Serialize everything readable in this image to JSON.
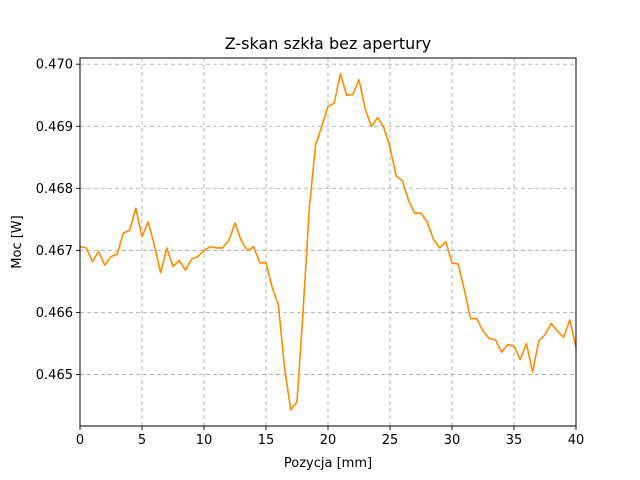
{
  "chart_data": {
    "type": "line",
    "title": "Z-skan szkła bez apertury",
    "xlabel": "Pozycja [mm]",
    "ylabel": "Moc [W]",
    "xlim": [
      0,
      40
    ],
    "ylim": [
      0.46417,
      0.4701
    ],
    "xticks": [
      0,
      5,
      10,
      15,
      20,
      25,
      30,
      35,
      40
    ],
    "xtick_labels": [
      "0",
      "5",
      "10",
      "15",
      "20",
      "25",
      "30",
      "35",
      "40"
    ],
    "yticks": [
      0.465,
      0.466,
      0.467,
      0.468,
      0.469,
      0.47
    ],
    "ytick_labels": [
      "0.465",
      "0.466",
      "0.467",
      "0.468",
      "0.469",
      "0.470"
    ],
    "grid": true,
    "line_color": "#ff8c00",
    "series": [
      {
        "x": [
          0,
          0.5,
          1,
          1.5,
          2,
          2.5,
          3,
          3.5,
          4,
          4.5,
          5,
          5.5,
          6,
          6.5,
          7,
          7.5,
          8,
          8.5,
          9,
          9.5,
          10,
          10.5,
          11,
          11.5,
          12,
          12.5,
          13,
          13.5,
          14,
          14.5,
          15,
          15.5,
          16,
          16.5,
          17,
          17.5,
          18,
          18.5,
          19,
          19.5,
          20,
          20.5,
          21,
          21.5,
          22,
          22.5,
          23,
          23.5,
          24,
          24.5,
          25,
          25.5,
          26,
          26.5,
          27,
          27.5,
          28,
          28.5,
          29,
          29.5,
          30,
          30.5,
          31,
          31.5,
          32,
          32.5,
          33,
          33.5,
          34,
          34.5,
          35,
          35.5,
          36,
          36.5,
          37,
          37.5,
          38,
          38.5,
          39,
          39.5,
          40
        ],
        "y": [
          0.46706,
          0.46704,
          0.46682,
          0.46698,
          0.46676,
          0.4669,
          0.46694,
          0.46728,
          0.46732,
          0.46768,
          0.46722,
          0.46746,
          0.46708,
          0.46664,
          0.46704,
          0.46674,
          0.46684,
          0.46668,
          0.46686,
          0.4669,
          0.467,
          0.46706,
          0.46704,
          0.46704,
          0.46716,
          0.46744,
          0.46716,
          0.467,
          0.46706,
          0.4668,
          0.4668,
          0.4664,
          0.46612,
          0.4651,
          0.46443,
          0.46456,
          0.46605,
          0.4677,
          0.4687,
          0.469,
          0.46932,
          0.46937,
          0.46985,
          0.4695,
          0.46951,
          0.46975,
          0.46928,
          0.469,
          0.46914,
          0.46898,
          0.46866,
          0.4682,
          0.46812,
          0.4678,
          0.4676,
          0.4676,
          0.46746,
          0.46718,
          0.46704,
          0.46714,
          0.4668,
          0.46678,
          0.46636,
          0.4659,
          0.4659,
          0.4657,
          0.46558,
          0.46556,
          0.46536,
          0.46548,
          0.46546,
          0.46524,
          0.4655,
          0.46504,
          0.46554,
          0.46564,
          0.46582,
          0.4657,
          0.4656,
          0.46588,
          0.46544
        ]
      }
    ]
  }
}
